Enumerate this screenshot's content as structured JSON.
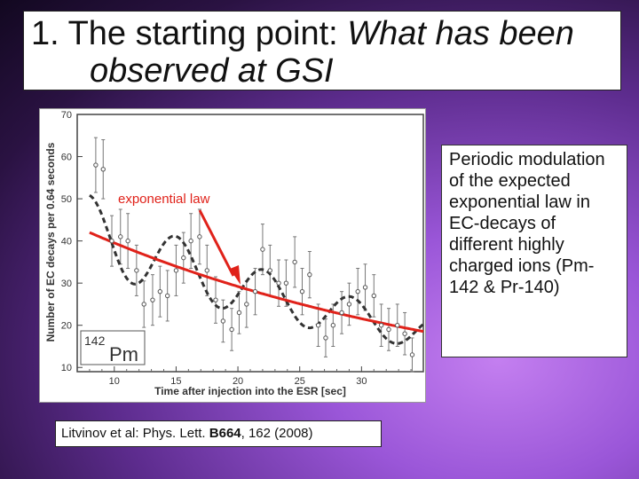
{
  "slide": {
    "title_plain": "1. The starting point: ",
    "title_italic_1": "What has been",
    "title_italic_2": "observed at GSI",
    "side_text": "Periodic modulation of the expected exponential law in EC-decays of different highly charged ions (Pm-142 & Pr-140)",
    "citation_prefix": "Litvinov et al: Phys. Lett. ",
    "citation_volume": "B664",
    "citation_suffix": ", 162 (2008)"
  },
  "chart_data": {
    "type": "scatter",
    "title": "",
    "xlabel": "Time after injection into the ESR [sec]",
    "ylabel": "Number of EC decays per 0.64 seconds",
    "xlim": [
      7,
      35
    ],
    "ylim": [
      9,
      70
    ],
    "xticks": [
      10,
      15,
      20,
      25,
      30
    ],
    "yticks": [
      10,
      20,
      30,
      40,
      50,
      60,
      70
    ],
    "inset_label_mass": "142",
    "inset_label_element": "Pm",
    "exp_label": "exponential law",
    "series": [
      {
        "name": "data",
        "points": [
          [
            8.5,
            58,
            6.5
          ],
          [
            9.1,
            57,
            7
          ],
          [
            9.8,
            40,
            6
          ],
          [
            10.5,
            41,
            6.5
          ],
          [
            11.1,
            40,
            6.5
          ],
          [
            11.8,
            33,
            6
          ],
          [
            12.4,
            25,
            5.5
          ],
          [
            13.1,
            26,
            6
          ],
          [
            13.7,
            28,
            6
          ],
          [
            14.3,
            27,
            6
          ],
          [
            15.0,
            33,
            6
          ],
          [
            15.6,
            36,
            6
          ],
          [
            16.2,
            40,
            6.5
          ],
          [
            16.9,
            41,
            6.5
          ],
          [
            17.5,
            33,
            6
          ],
          [
            18.2,
            26,
            5.5
          ],
          [
            18.8,
            21,
            5
          ],
          [
            19.5,
            19,
            5
          ],
          [
            20.1,
            23,
            5
          ],
          [
            20.7,
            25,
            5.5
          ],
          [
            21.4,
            28,
            5.5
          ],
          [
            22.0,
            38,
            6
          ],
          [
            22.6,
            33,
            6
          ],
          [
            23.3,
            30,
            5.5
          ],
          [
            23.9,
            30,
            5.5
          ],
          [
            24.6,
            35,
            6
          ],
          [
            25.2,
            28,
            5.5
          ],
          [
            25.8,
            32,
            5.5
          ],
          [
            26.5,
            20,
            5
          ],
          [
            27.1,
            17,
            4.5
          ],
          [
            27.7,
            20,
            5
          ],
          [
            28.4,
            23,
            5
          ],
          [
            29.0,
            25,
            5
          ],
          [
            29.7,
            28,
            5.5
          ],
          [
            30.3,
            29,
            5.5
          ],
          [
            31.0,
            27,
            5
          ],
          [
            31.6,
            20,
            5
          ],
          [
            32.2,
            19,
            5
          ],
          [
            32.9,
            20,
            5
          ],
          [
            33.5,
            18,
            5
          ],
          [
            34.1,
            13,
            4
          ]
        ]
      },
      {
        "name": "exponential fit",
        "a": 42.0,
        "t0": 8.0,
        "tau": 33.0
      },
      {
        "name": "modulated fit",
        "a": 42.0,
        "t0": 8.0,
        "tau": 33.0,
        "amp": 0.21,
        "period": 7.06,
        "phase": 0.0
      }
    ]
  }
}
